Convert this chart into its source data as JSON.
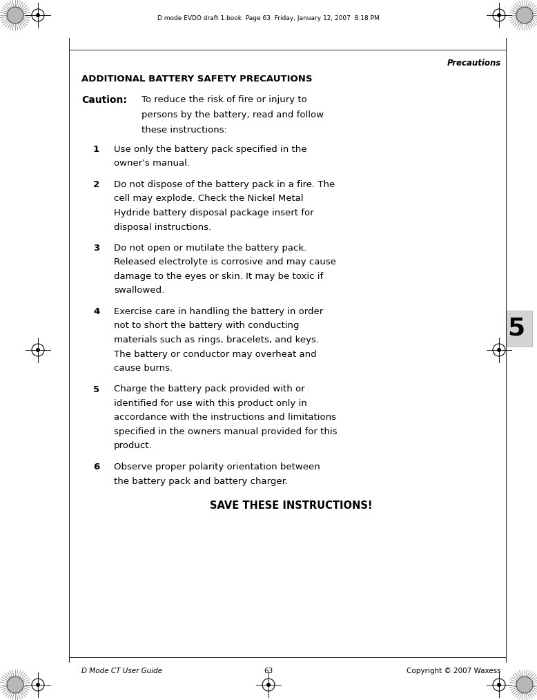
{
  "bg_color": "#ffffff",
  "page_width": 7.78,
  "page_height": 10.14,
  "header_text": "D mode EVDO draft 1.book  Page 63  Friday, January 12, 2007  8:18 PM",
  "footer_left": "D Mode CT User Guide",
  "footer_center": "63",
  "footer_right": "Copyright © 2007 Waxess",
  "section_header": "ADDITIONAL BATTERY SAFETY PRECAUTIONS",
  "right_header": "Precautions",
  "caution_label": "Caution:",
  "caution_line1": "To reduce the risk of fire or injury to",
  "caution_line2": "persons by the battery, read and follow",
  "caution_line3": "these instructions:",
  "tab_number": "5",
  "items": [
    {
      "num": "1",
      "text": "Use only the battery pack specified in the owner's manual."
    },
    {
      "num": "2",
      "text": "Do not dispose of the battery pack in a fire. The cell may explode. Check the Nickel Metal Hydride battery disposal package insert for disposal instructions."
    },
    {
      "num": "3",
      "text": "Do not open or mutilate the battery pack. Released electrolyte is corrosive and may cause damage to the eyes or skin. It may be toxic if swallowed."
    },
    {
      "num": "4",
      "text": "Exercise care in handling the battery in order not to short the battery with conducting materials such as rings, bracelets, and keys. The battery or conductor may overheat and cause burns."
    },
    {
      "num": "5",
      "text": "Charge the battery pack provided with or identified for use with this product only in accordance with the instructions and limitations specified in the owners manual provided for this product."
    },
    {
      "num": "6",
      "text": "Observe proper polarity orientation between the battery pack and battery charger."
    }
  ],
  "save_text": "SAVE THESE INSTRUCTIONS!",
  "text_color": "#000000",
  "tab_bg": "#d4d4d4",
  "tab_text_color": "#000000"
}
